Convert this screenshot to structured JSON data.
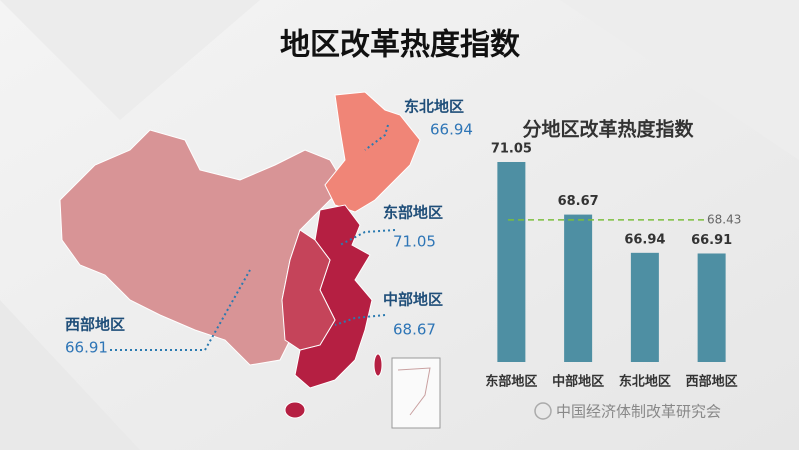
{
  "slide": {
    "title": "地区改革热度指数",
    "watermark": "中国经济体制改革研究会"
  },
  "map": {
    "regions": [
      {
        "name": "东北地区",
        "value": 66.94
      },
      {
        "name": "东部地区",
        "value": 71.05
      },
      {
        "name": "中部地区",
        "value": 68.67
      },
      {
        "name": "西部地区",
        "value": 66.91
      }
    ]
  },
  "chart_data": {
    "type": "bar",
    "title": "分地区改革热度指数",
    "categories": [
      "东部地区",
      "中部地区",
      "东北地区",
      "西部地区"
    ],
    "values": [
      71.05,
      68.67,
      66.94,
      66.91
    ],
    "color": "#4e8fa3",
    "ylim": [
      62,
      72
    ],
    "reference_line": 68.43,
    "reference_color": "#7cbf3c"
  }
}
